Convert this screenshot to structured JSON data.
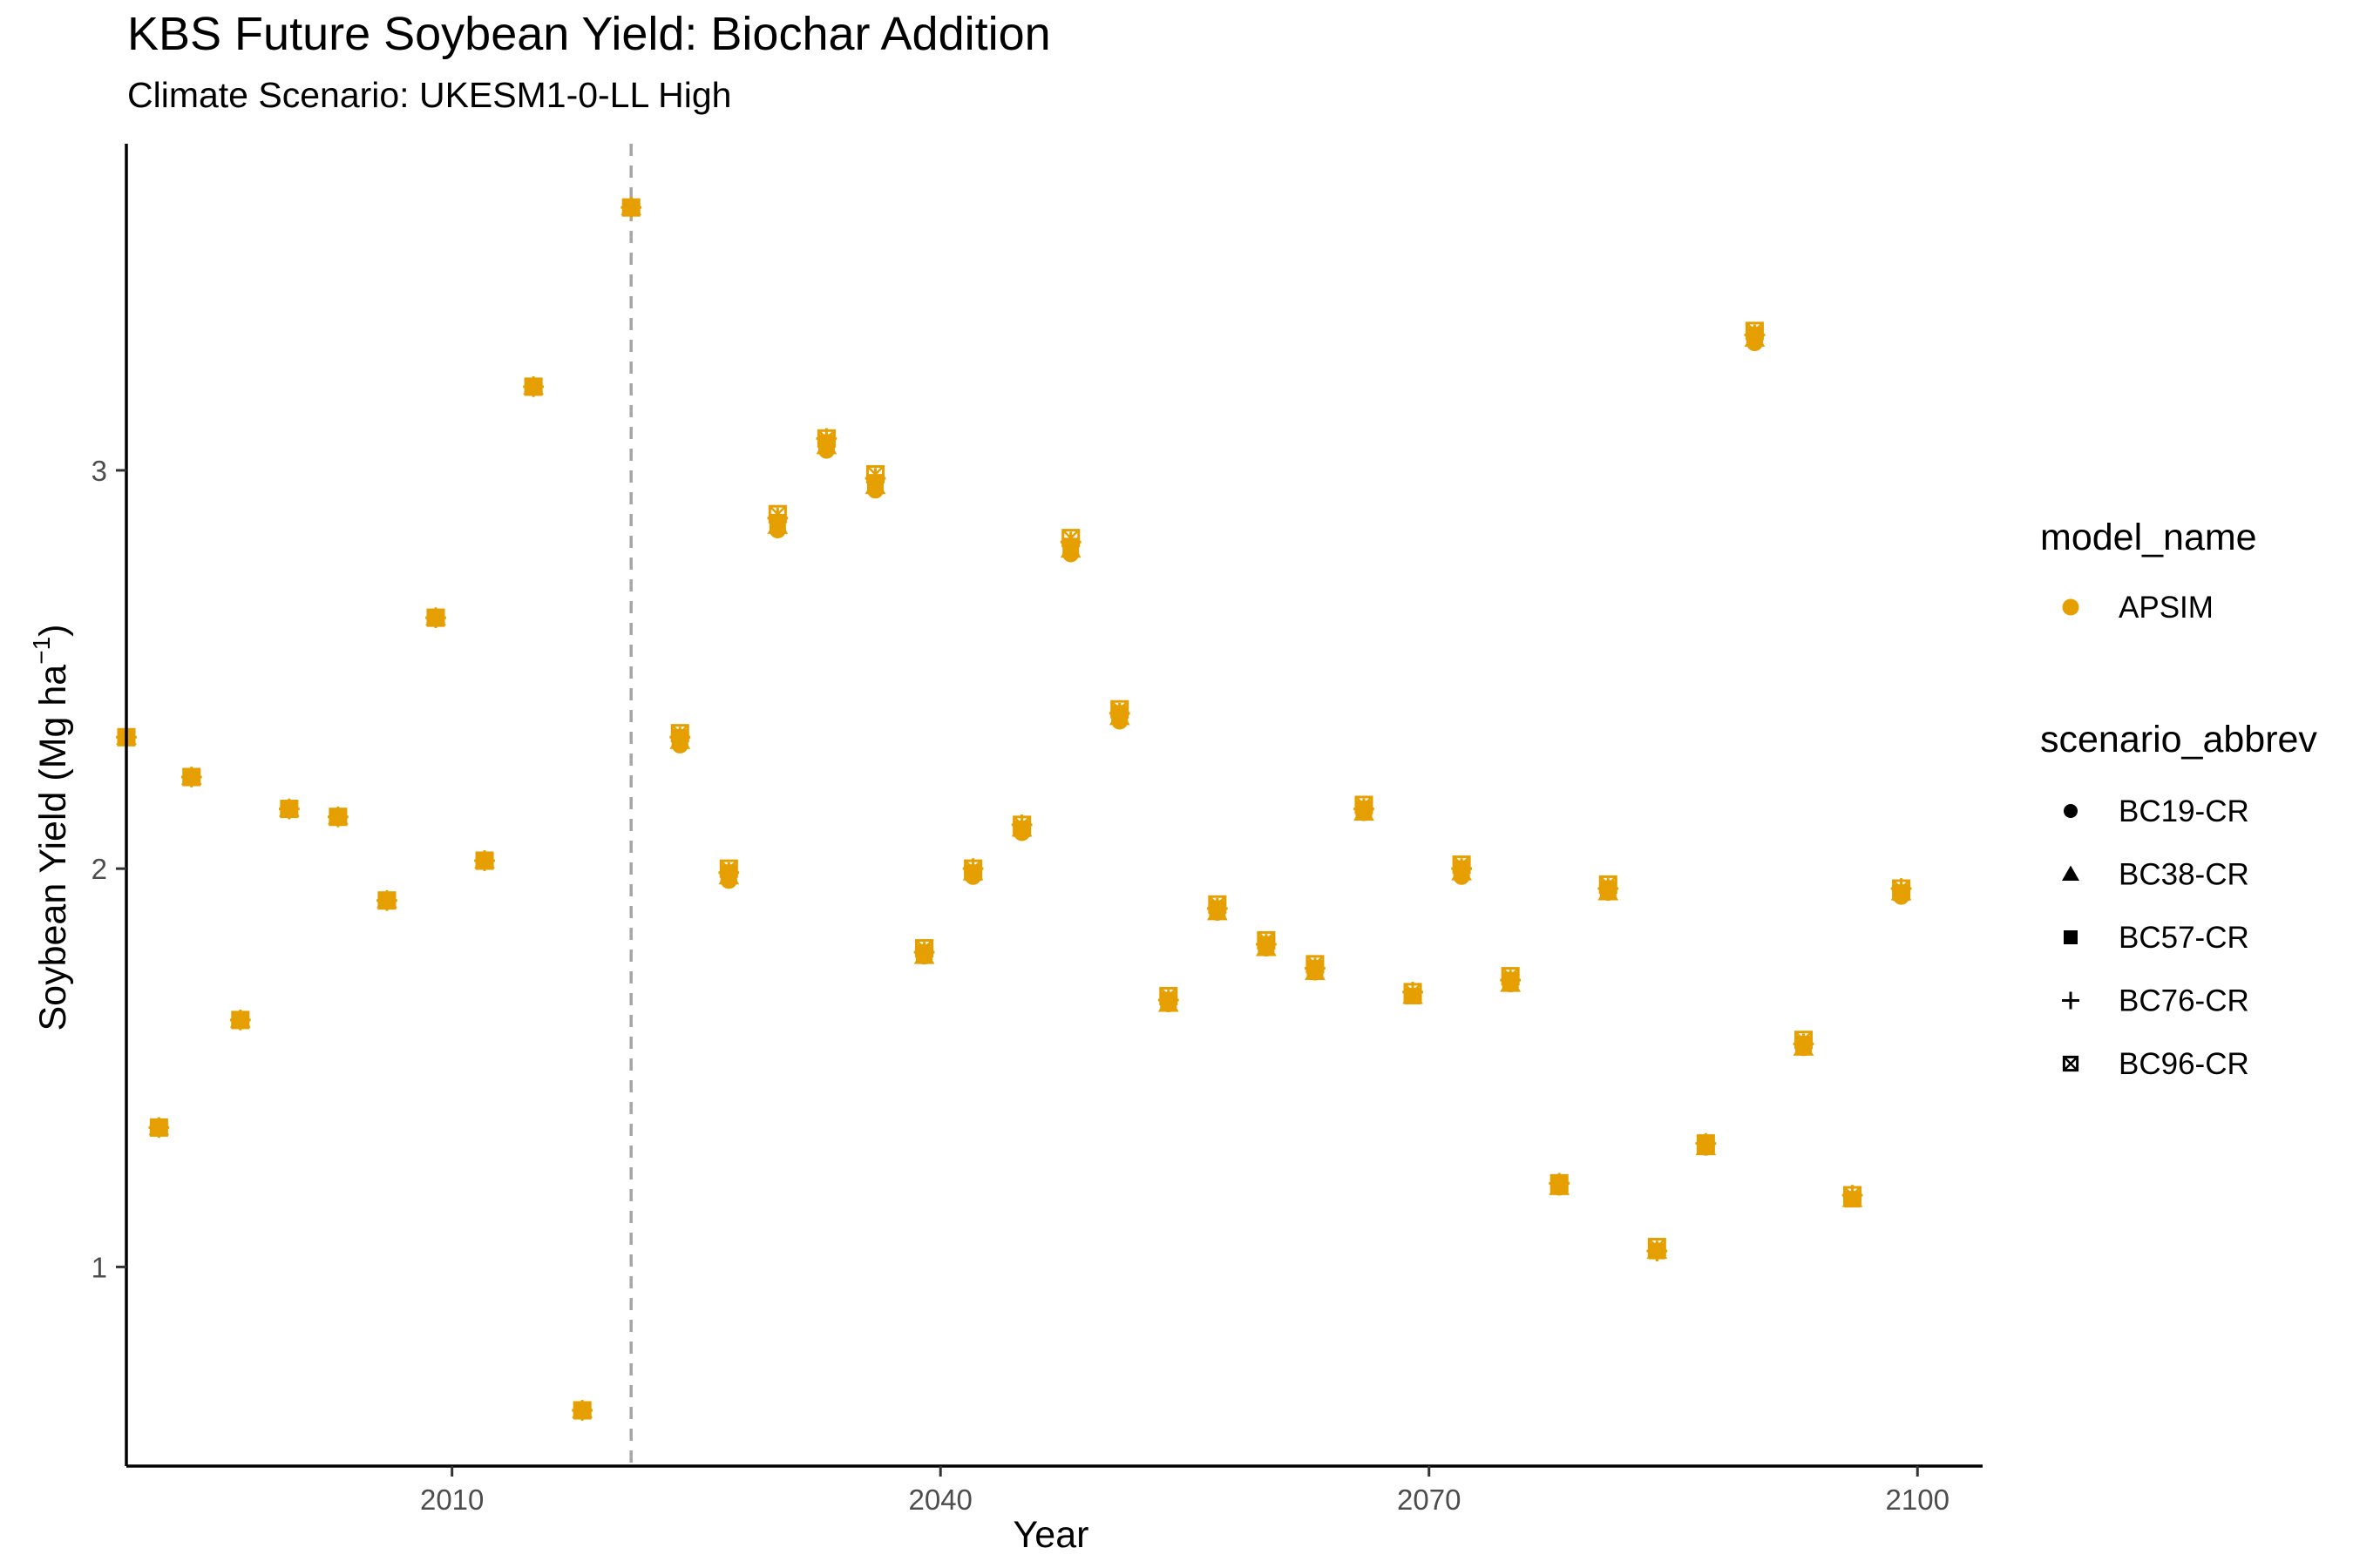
{
  "chart_data": {
    "type": "scatter",
    "title": "KBS Future Soybean Yield: Biochar Addition",
    "subtitle": "Climate Scenario: UKESM1-0-LL High",
    "xlabel": "Year",
    "ylabel_main": "Soybean Yield (Mg ha",
    "ylabel_sup": "−1",
    "ylabel_close": ")",
    "xlim": [
      1990,
      2104
    ],
    "ylim": [
      0.5,
      3.82
    ],
    "x_ticks": [
      2010,
      2040,
      2070,
      2100
    ],
    "y_ticks": [
      1,
      2,
      3
    ],
    "reference_line_x": 2021,
    "grid": false,
    "legend_placement": "right",
    "legend_color_title": "model_name",
    "legend_color_entries": [
      {
        "name": "APSIM",
        "color": "#E69F00"
      }
    ],
    "legend_shape_title": "scenario_abbrev",
    "legend_shape_entries": [
      {
        "name": "BC19-CR",
        "shape": "circle"
      },
      {
        "name": "BC38-CR",
        "shape": "triangle"
      },
      {
        "name": "BC57-CR",
        "shape": "square"
      },
      {
        "name": "BC76-CR",
        "shape": "plus"
      },
      {
        "name": "BC96-CR",
        "shape": "square-cross"
      }
    ],
    "x": [
      1990,
      1992,
      1994,
      1997,
      2000,
      2003,
      2006,
      2009,
      2012,
      2015,
      2018,
      2021,
      2024,
      2027,
      2030,
      2033,
      2036,
      2039,
      2042,
      2045,
      2048,
      2051,
      2054,
      2057,
      2060,
      2063,
      2066,
      2069,
      2072,
      2075,
      2078,
      2081,
      2084,
      2087,
      2090,
      2093,
      2096,
      2099
    ],
    "series": [
      {
        "name": "BC19-CR",
        "color": "#E69F00",
        "shape": "circle",
        "values": [
          2.33,
          1.35,
          2.23,
          1.62,
          2.15,
          2.13,
          1.92,
          2.63,
          2.02,
          3.21,
          0.64,
          3.66,
          2.31,
          1.97,
          2.85,
          3.05,
          2.95,
          1.78,
          1.98,
          2.09,
          2.79,
          2.37,
          1.66,
          1.89,
          1.8,
          1.74,
          2.14,
          1.68,
          1.98,
          1.71,
          1.2,
          1.94,
          1.04,
          1.3,
          3.32,
          1.55,
          1.17,
          1.93
        ]
      },
      {
        "name": "BC38-CR",
        "color": "#E69F00",
        "shape": "triangle",
        "values": [
          2.33,
          1.35,
          2.23,
          1.62,
          2.15,
          2.13,
          1.92,
          2.63,
          2.02,
          3.21,
          0.64,
          3.66,
          2.32,
          1.98,
          2.86,
          3.06,
          2.96,
          1.78,
          1.99,
          2.1,
          2.8,
          2.38,
          1.66,
          1.89,
          1.8,
          1.74,
          2.14,
          1.68,
          1.99,
          1.71,
          1.2,
          1.94,
          1.04,
          1.3,
          3.33,
          1.55,
          1.17,
          1.94
        ]
      },
      {
        "name": "BC57-CR",
        "color": "#E69F00",
        "shape": "square",
        "values": [
          2.33,
          1.35,
          2.23,
          1.62,
          2.15,
          2.13,
          1.92,
          2.63,
          2.02,
          3.21,
          0.64,
          3.66,
          2.33,
          1.99,
          2.87,
          3.07,
          2.97,
          1.79,
          1.99,
          2.1,
          2.81,
          2.39,
          1.67,
          1.9,
          1.81,
          1.75,
          2.15,
          1.68,
          2.0,
          1.72,
          1.21,
          1.95,
          1.04,
          1.31,
          3.34,
          1.56,
          1.17,
          1.94
        ]
      },
      {
        "name": "BC76-CR",
        "color": "#E69F00",
        "shape": "plus",
        "values": [
          2.33,
          1.35,
          2.23,
          1.62,
          2.15,
          2.13,
          1.92,
          2.63,
          2.02,
          3.21,
          0.64,
          3.66,
          2.33,
          1.99,
          2.88,
          3.08,
          2.98,
          1.79,
          2.0,
          2.11,
          2.82,
          2.39,
          1.67,
          1.9,
          1.81,
          1.75,
          2.15,
          1.69,
          2.0,
          1.72,
          1.21,
          1.95,
          1.04,
          1.31,
          3.34,
          1.56,
          1.18,
          1.95
        ]
      },
      {
        "name": "BC96-CR",
        "color": "#E69F00",
        "shape": "square-cross",
        "values": [
          2.33,
          1.35,
          2.23,
          1.62,
          2.15,
          2.13,
          1.92,
          2.63,
          2.02,
          3.21,
          0.64,
          3.66,
          2.34,
          2.0,
          2.89,
          3.08,
          2.99,
          1.8,
          2.0,
          2.11,
          2.83,
          2.4,
          1.68,
          1.91,
          1.82,
          1.76,
          2.16,
          1.69,
          2.01,
          1.73,
          1.21,
          1.96,
          1.05,
          1.31,
          3.35,
          1.57,
          1.18,
          1.95
        ]
      }
    ]
  }
}
